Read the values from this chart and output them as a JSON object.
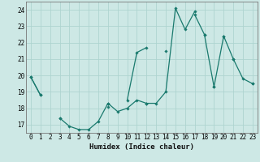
{
  "xlabel": "Humidex (Indice chaleur)",
  "ylabel": "",
  "background_color": "#cde8e5",
  "line_color": "#1a7a6e",
  "grid_color": "#aed4d0",
  "xlim": [
    -0.5,
    23.5
  ],
  "ylim": [
    16.5,
    24.5
  ],
  "yticks": [
    17,
    18,
    19,
    20,
    21,
    22,
    23,
    24
  ],
  "xticks": [
    0,
    1,
    2,
    3,
    4,
    5,
    6,
    7,
    8,
    9,
    10,
    11,
    12,
    13,
    14,
    15,
    16,
    17,
    18,
    19,
    20,
    21,
    22,
    23
  ],
  "hours": [
    0,
    1,
    2,
    3,
    4,
    5,
    6,
    7,
    8,
    9,
    10,
    11,
    12,
    13,
    14,
    15,
    16,
    17,
    18,
    19,
    20,
    21,
    22,
    23
  ],
  "line1": [
    19.9,
    18.8,
    null,
    17.4,
    16.9,
    16.7,
    16.7,
    17.2,
    18.3,
    17.8,
    18.0,
    18.5,
    18.3,
    18.3,
    19.0,
    24.1,
    22.8,
    23.9,
    null,
    19.3,
    null,
    21.0,
    19.8,
    19.5
  ],
  "line2": [
    null,
    null,
    null,
    null,
    null,
    null,
    null,
    null,
    18.1,
    null,
    18.5,
    21.4,
    21.7,
    null,
    21.5,
    null,
    null,
    23.7,
    22.5,
    null,
    22.4,
    21.0,
    null,
    null
  ],
  "line3": [
    19.9,
    18.8,
    null,
    17.4,
    null,
    null,
    null,
    null,
    18.3,
    null,
    null,
    null,
    18.3,
    null,
    null,
    null,
    null,
    null,
    22.5,
    19.3,
    22.4,
    null,
    null,
    19.5
  ]
}
